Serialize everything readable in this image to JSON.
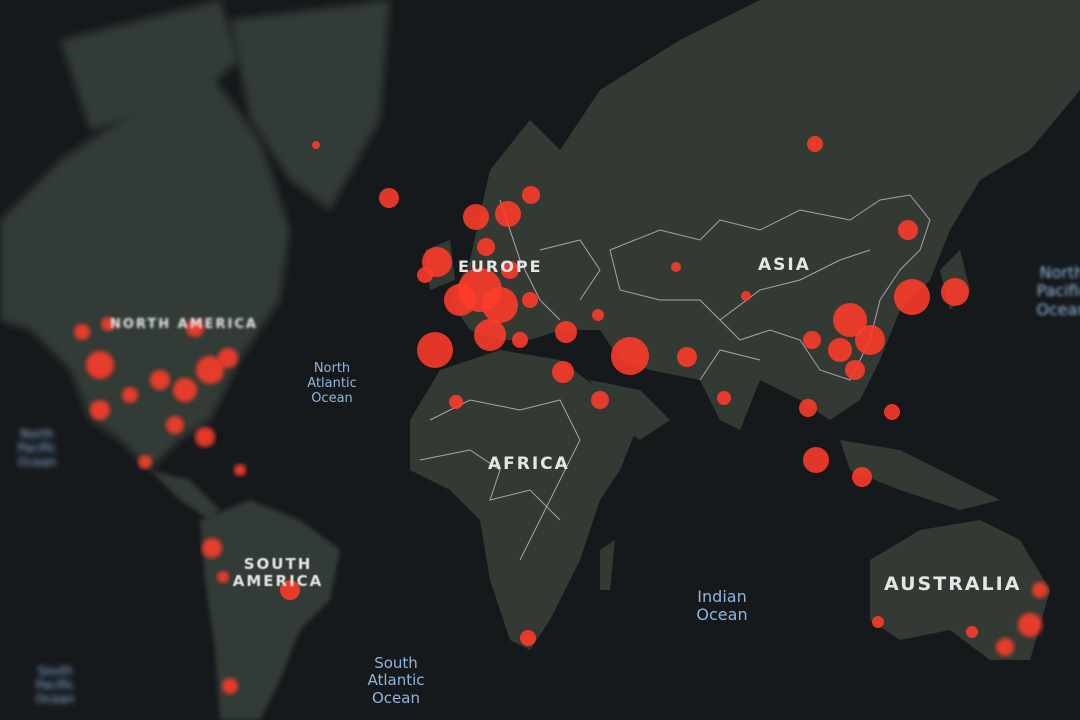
{
  "map": {
    "colors": {
      "background": "#16191c",
      "land": "#333a34",
      "borders": "#c9c9d6",
      "dots": "#ff3b2a",
      "ocean_labels": "#8fb6dc",
      "continent_labels": "#e6e6e6"
    },
    "continent_labels": {
      "north_america": "NORTH AMERICA",
      "south_america": "SOUTH AMERICA",
      "europe": "EUROPE",
      "asia": "ASIA",
      "africa": "AFRICA",
      "australia": "AUSTRALIA"
    },
    "ocean_labels": {
      "north_atlantic": "North Atlantic Ocean",
      "south_atlantic": "South Atlantic Ocean",
      "indian": "Indian Ocean",
      "north_pacific_west": "North Pacific Ocean",
      "north_pacific_east": "North Pacific Ocean",
      "south_pacific": "South Pacific Ocean"
    },
    "markers": "red-circle-markers"
  }
}
